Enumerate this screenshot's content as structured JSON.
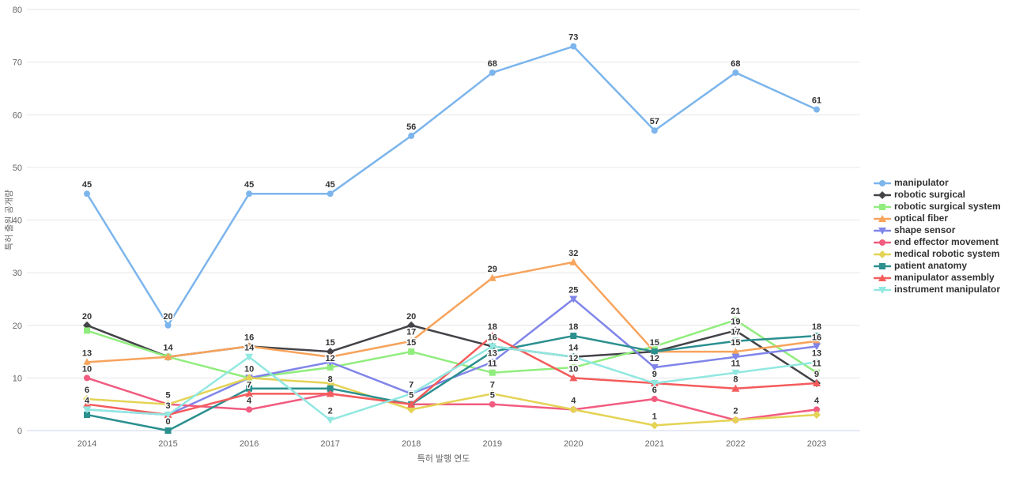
{
  "chart_data": {
    "type": "line",
    "title": "",
    "xlabel": "특허 발행 연도",
    "ylabel": "특허 출원 공개량",
    "x": [
      2014,
      2015,
      2016,
      2017,
      2018,
      2019,
      2020,
      2021,
      2022,
      2023
    ],
    "ylim": [
      0,
      80
    ],
    "ytick_step": 10,
    "grid": true,
    "legend_position": "right",
    "axis_text_color": "#666666",
    "grid_color": "#e6e6e6",
    "xaxis_line_color": "#ccd6eb",
    "data_label_color": "#333333",
    "series": [
      {
        "name": "manipulator",
        "color": "#7cb5ec",
        "marker": "circle",
        "values": [
          45,
          20,
          45,
          45,
          56,
          68,
          73,
          57,
          68,
          61
        ],
        "labels": [
          45,
          20,
          45,
          45,
          56,
          68,
          73,
          57,
          68,
          61
        ]
      },
      {
        "name": "robotic surgical",
        "color": "#434348",
        "marker": "diamond",
        "values": [
          20,
          14,
          16,
          15,
          20,
          16,
          14,
          15,
          19,
          9
        ],
        "labels": [
          20,
          null,
          null,
          15,
          20,
          null,
          14,
          null,
          19,
          null
        ]
      },
      {
        "name": "robotic surgical system",
        "color": "#90ed7d",
        "marker": "square",
        "values": [
          19,
          14,
          10,
          12,
          15,
          11,
          12,
          16,
          21,
          11
        ],
        "labels": [
          null,
          14,
          null,
          12,
          15,
          11,
          12,
          null,
          21,
          11
        ]
      },
      {
        "name": "optical fiber",
        "color": "#f7a35c",
        "marker": "triangle",
        "values": [
          13,
          14,
          16,
          14,
          17,
          29,
          32,
          15,
          15,
          17
        ],
        "labels": [
          13,
          null,
          16,
          null,
          17,
          29,
          32,
          null,
          15,
          null
        ]
      },
      {
        "name": "shape sensor",
        "color": "#8085e9",
        "marker": "triangle-down",
        "values": [
          4,
          3,
          10,
          13,
          7,
          13,
          25,
          12,
          14,
          16
        ],
        "labels": [
          null,
          null,
          10,
          null,
          null,
          13,
          25,
          12,
          null,
          16
        ]
      },
      {
        "name": "end effector movement",
        "color": "#f15c80",
        "marker": "circle",
        "values": [
          10,
          5,
          4,
          7,
          5,
          5,
          4,
          6,
          2,
          4
        ],
        "labels": [
          10,
          5,
          4,
          null,
          null,
          5,
          null,
          6,
          null,
          4
        ]
      },
      {
        "name": "medical robotic system",
        "color": "#e4d354",
        "marker": "diamond",
        "values": [
          6,
          5,
          10,
          9,
          4,
          7,
          4,
          1,
          2,
          3
        ],
        "labels": [
          6,
          null,
          null,
          null,
          null,
          7,
          4,
          1,
          2,
          null
        ]
      },
      {
        "name": "patient anatomy",
        "color": "#2b908f",
        "marker": "square",
        "values": [
          3,
          0,
          8,
          8,
          5,
          15,
          18,
          15,
          17,
          18
        ],
        "labels": [
          null,
          0,
          null,
          8,
          5,
          null,
          18,
          15,
          17,
          18
        ]
      },
      {
        "name": "manipulator assembly",
        "color": "#f45b5b",
        "marker": "triangle",
        "values": [
          5,
          3,
          7,
          7,
          5,
          18,
          10,
          9,
          8,
          9
        ],
        "labels": [
          null,
          3,
          7,
          null,
          null,
          18,
          10,
          null,
          8,
          9
        ]
      },
      {
        "name": "instrument manipulator",
        "color": "#91e8e1",
        "marker": "triangle-down",
        "values": [
          4,
          3,
          14,
          2,
          7,
          16,
          14,
          9,
          11,
          13
        ],
        "labels": [
          4,
          null,
          14,
          2,
          7,
          16,
          null,
          9,
          11,
          13
        ]
      }
    ]
  }
}
